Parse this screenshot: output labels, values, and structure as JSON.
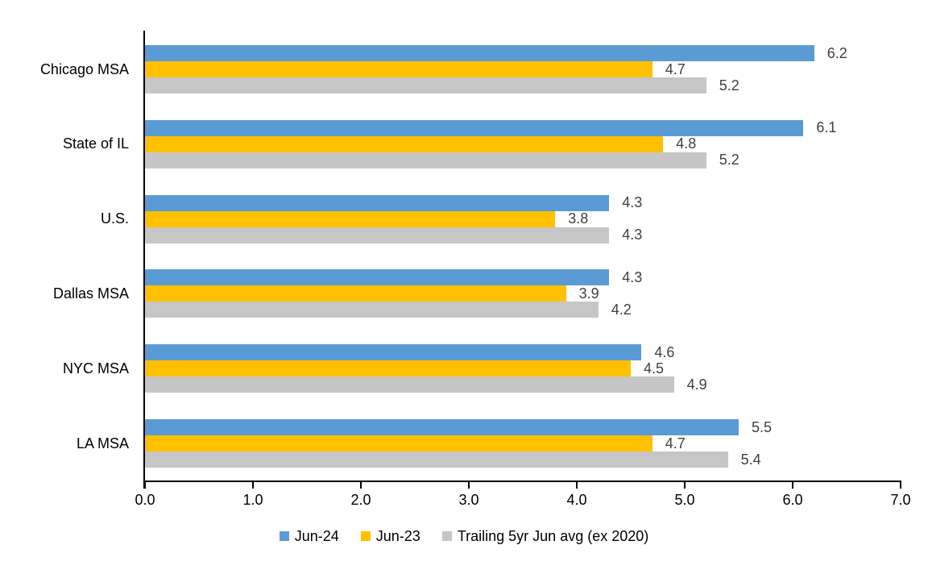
{
  "chart_data": {
    "type": "bar",
    "orientation": "horizontal",
    "categories": [
      "Chicago MSA",
      "State of IL",
      "U.S.",
      "Dallas MSA",
      "NYC MSA",
      "LA MSA"
    ],
    "series": [
      {
        "name": "Jun-24",
        "color": "#5B9BD5",
        "values": [
          6.2,
          6.1,
          4.3,
          4.3,
          4.6,
          5.5
        ]
      },
      {
        "name": "Jun-23",
        "color": "#FFC000",
        "values": [
          4.7,
          4.8,
          3.8,
          3.9,
          4.5,
          4.7
        ]
      },
      {
        "name": "Trailing 5yr Jun avg (ex 2020)",
        "color": "#C6C6C6",
        "values": [
          5.2,
          5.2,
          4.3,
          4.2,
          4.9,
          5.4
        ]
      }
    ],
    "xlim": [
      0,
      7
    ],
    "xtick_labels": [
      "0.0",
      "1.0",
      "2.0",
      "3.0",
      "4.0",
      "5.0",
      "6.0",
      "7.0"
    ],
    "grid": false,
    "legend_position": "bottom",
    "value_labels_shown": true,
    "value_label_color": "#404040",
    "axis_color": "#000000",
    "plot_background": "#FFFFFF"
  }
}
